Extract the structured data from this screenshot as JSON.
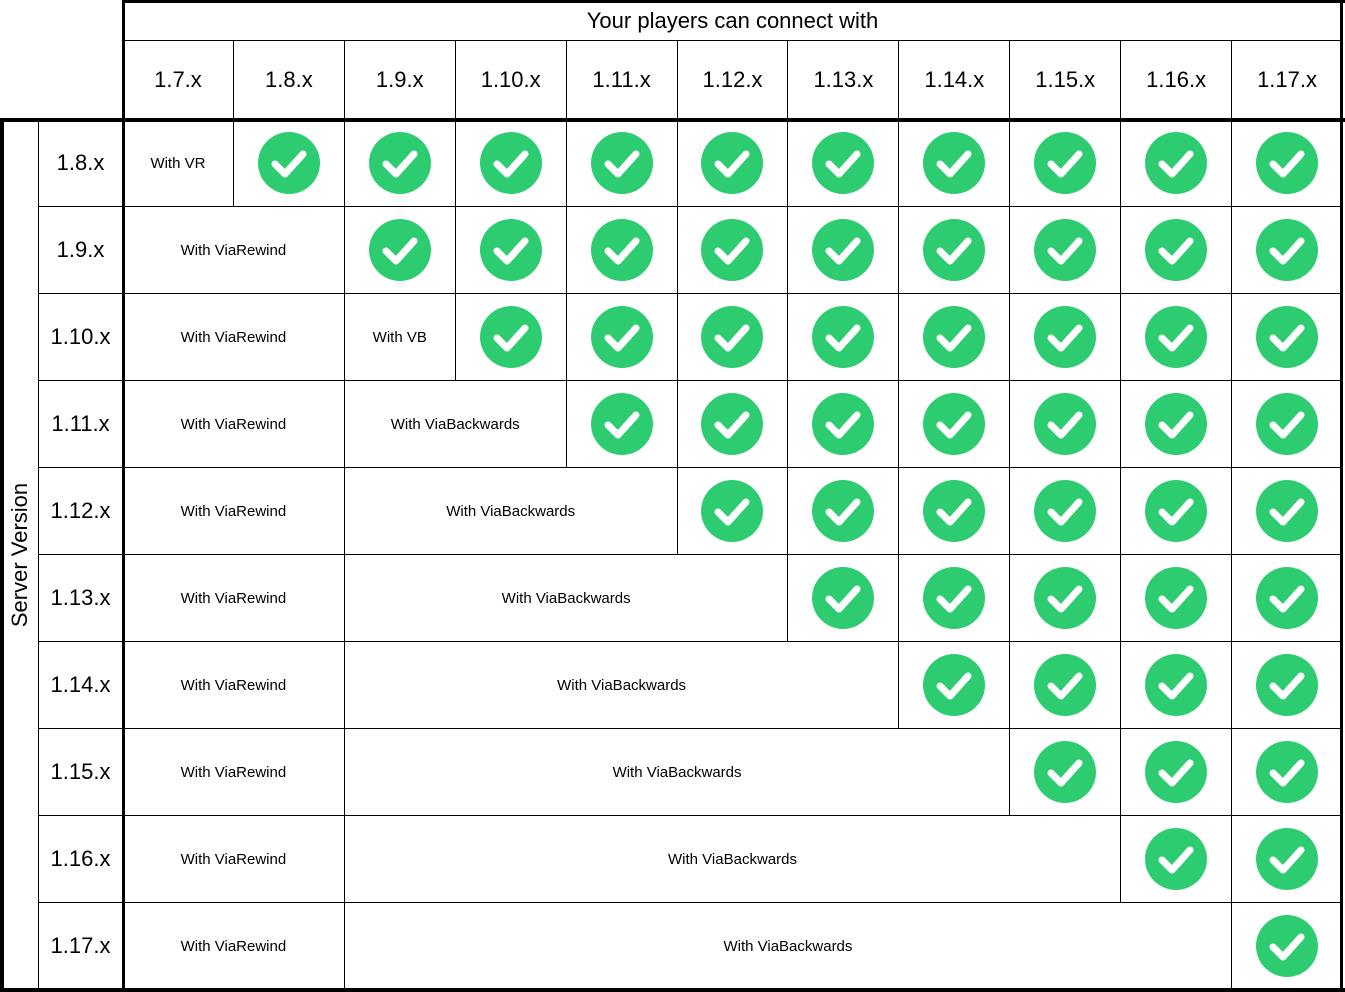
{
  "header": {
    "title": "Your players can connect with",
    "client_versions": [
      "1.7.x",
      "1.8.x",
      "1.9.x",
      "1.10.x",
      "1.11.x",
      "1.12.x",
      "1.13.x",
      "1.14.x",
      "1.15.x",
      "1.16.x",
      "1.17.x"
    ]
  },
  "side": {
    "title": "Server Version"
  },
  "colors": {
    "check_green": "#2ECC71",
    "check_mark": "#ffffff",
    "border": "#000000"
  },
  "rows": [
    {
      "server": "1.8.x",
      "cells": [
        {
          "text": "With VR",
          "span": 1
        },
        {
          "check": true
        },
        {
          "check": true
        },
        {
          "check": true
        },
        {
          "check": true
        },
        {
          "check": true
        },
        {
          "check": true
        },
        {
          "check": true
        },
        {
          "check": true
        },
        {
          "check": true
        },
        {
          "check": true
        }
      ]
    },
    {
      "server": "1.9.x",
      "cells": [
        {
          "text": "With ViaRewind",
          "span": 2
        },
        {
          "check": true
        },
        {
          "check": true
        },
        {
          "check": true
        },
        {
          "check": true
        },
        {
          "check": true
        },
        {
          "check": true
        },
        {
          "check": true
        },
        {
          "check": true
        },
        {
          "check": true
        }
      ]
    },
    {
      "server": "1.10.x",
      "cells": [
        {
          "text": "With ViaRewind",
          "span": 2
        },
        {
          "text": "With VB",
          "span": 1
        },
        {
          "check": true
        },
        {
          "check": true
        },
        {
          "check": true
        },
        {
          "check": true
        },
        {
          "check": true
        },
        {
          "check": true
        },
        {
          "check": true
        },
        {
          "check": true
        }
      ]
    },
    {
      "server": "1.11.x",
      "cells": [
        {
          "text": "With ViaRewind",
          "span": 2
        },
        {
          "text": "With ViaBackwards",
          "span": 2
        },
        {
          "check": true
        },
        {
          "check": true
        },
        {
          "check": true
        },
        {
          "check": true
        },
        {
          "check": true
        },
        {
          "check": true
        },
        {
          "check": true
        }
      ]
    },
    {
      "server": "1.12.x",
      "cells": [
        {
          "text": "With ViaRewind",
          "span": 2
        },
        {
          "text": "With ViaBackwards",
          "span": 3
        },
        {
          "check": true
        },
        {
          "check": true
        },
        {
          "check": true
        },
        {
          "check": true
        },
        {
          "check": true
        },
        {
          "check": true
        }
      ]
    },
    {
      "server": "1.13.x",
      "cells": [
        {
          "text": "With ViaRewind",
          "span": 2
        },
        {
          "text": "With ViaBackwards",
          "span": 4
        },
        {
          "check": true
        },
        {
          "check": true
        },
        {
          "check": true
        },
        {
          "check": true
        },
        {
          "check": true
        }
      ]
    },
    {
      "server": "1.14.x",
      "cells": [
        {
          "text": "With ViaRewind",
          "span": 2
        },
        {
          "text": "With ViaBackwards",
          "span": 5
        },
        {
          "check": true
        },
        {
          "check": true
        },
        {
          "check": true
        },
        {
          "check": true
        }
      ]
    },
    {
      "server": "1.15.x",
      "cells": [
        {
          "text": "With ViaRewind",
          "span": 2
        },
        {
          "text": "With ViaBackwards",
          "span": 6
        },
        {
          "check": true
        },
        {
          "check": true
        },
        {
          "check": true
        }
      ]
    },
    {
      "server": "1.16.x",
      "cells": [
        {
          "text": "With ViaRewind",
          "span": 2
        },
        {
          "text": "With ViaBackwards",
          "span": 7
        },
        {
          "check": true
        },
        {
          "check": true
        }
      ]
    },
    {
      "server": "1.17.x",
      "cells": [
        {
          "text": "With ViaRewind",
          "span": 2
        },
        {
          "text": "With ViaBackwards",
          "span": 8
        },
        {
          "check": true
        }
      ]
    }
  ]
}
